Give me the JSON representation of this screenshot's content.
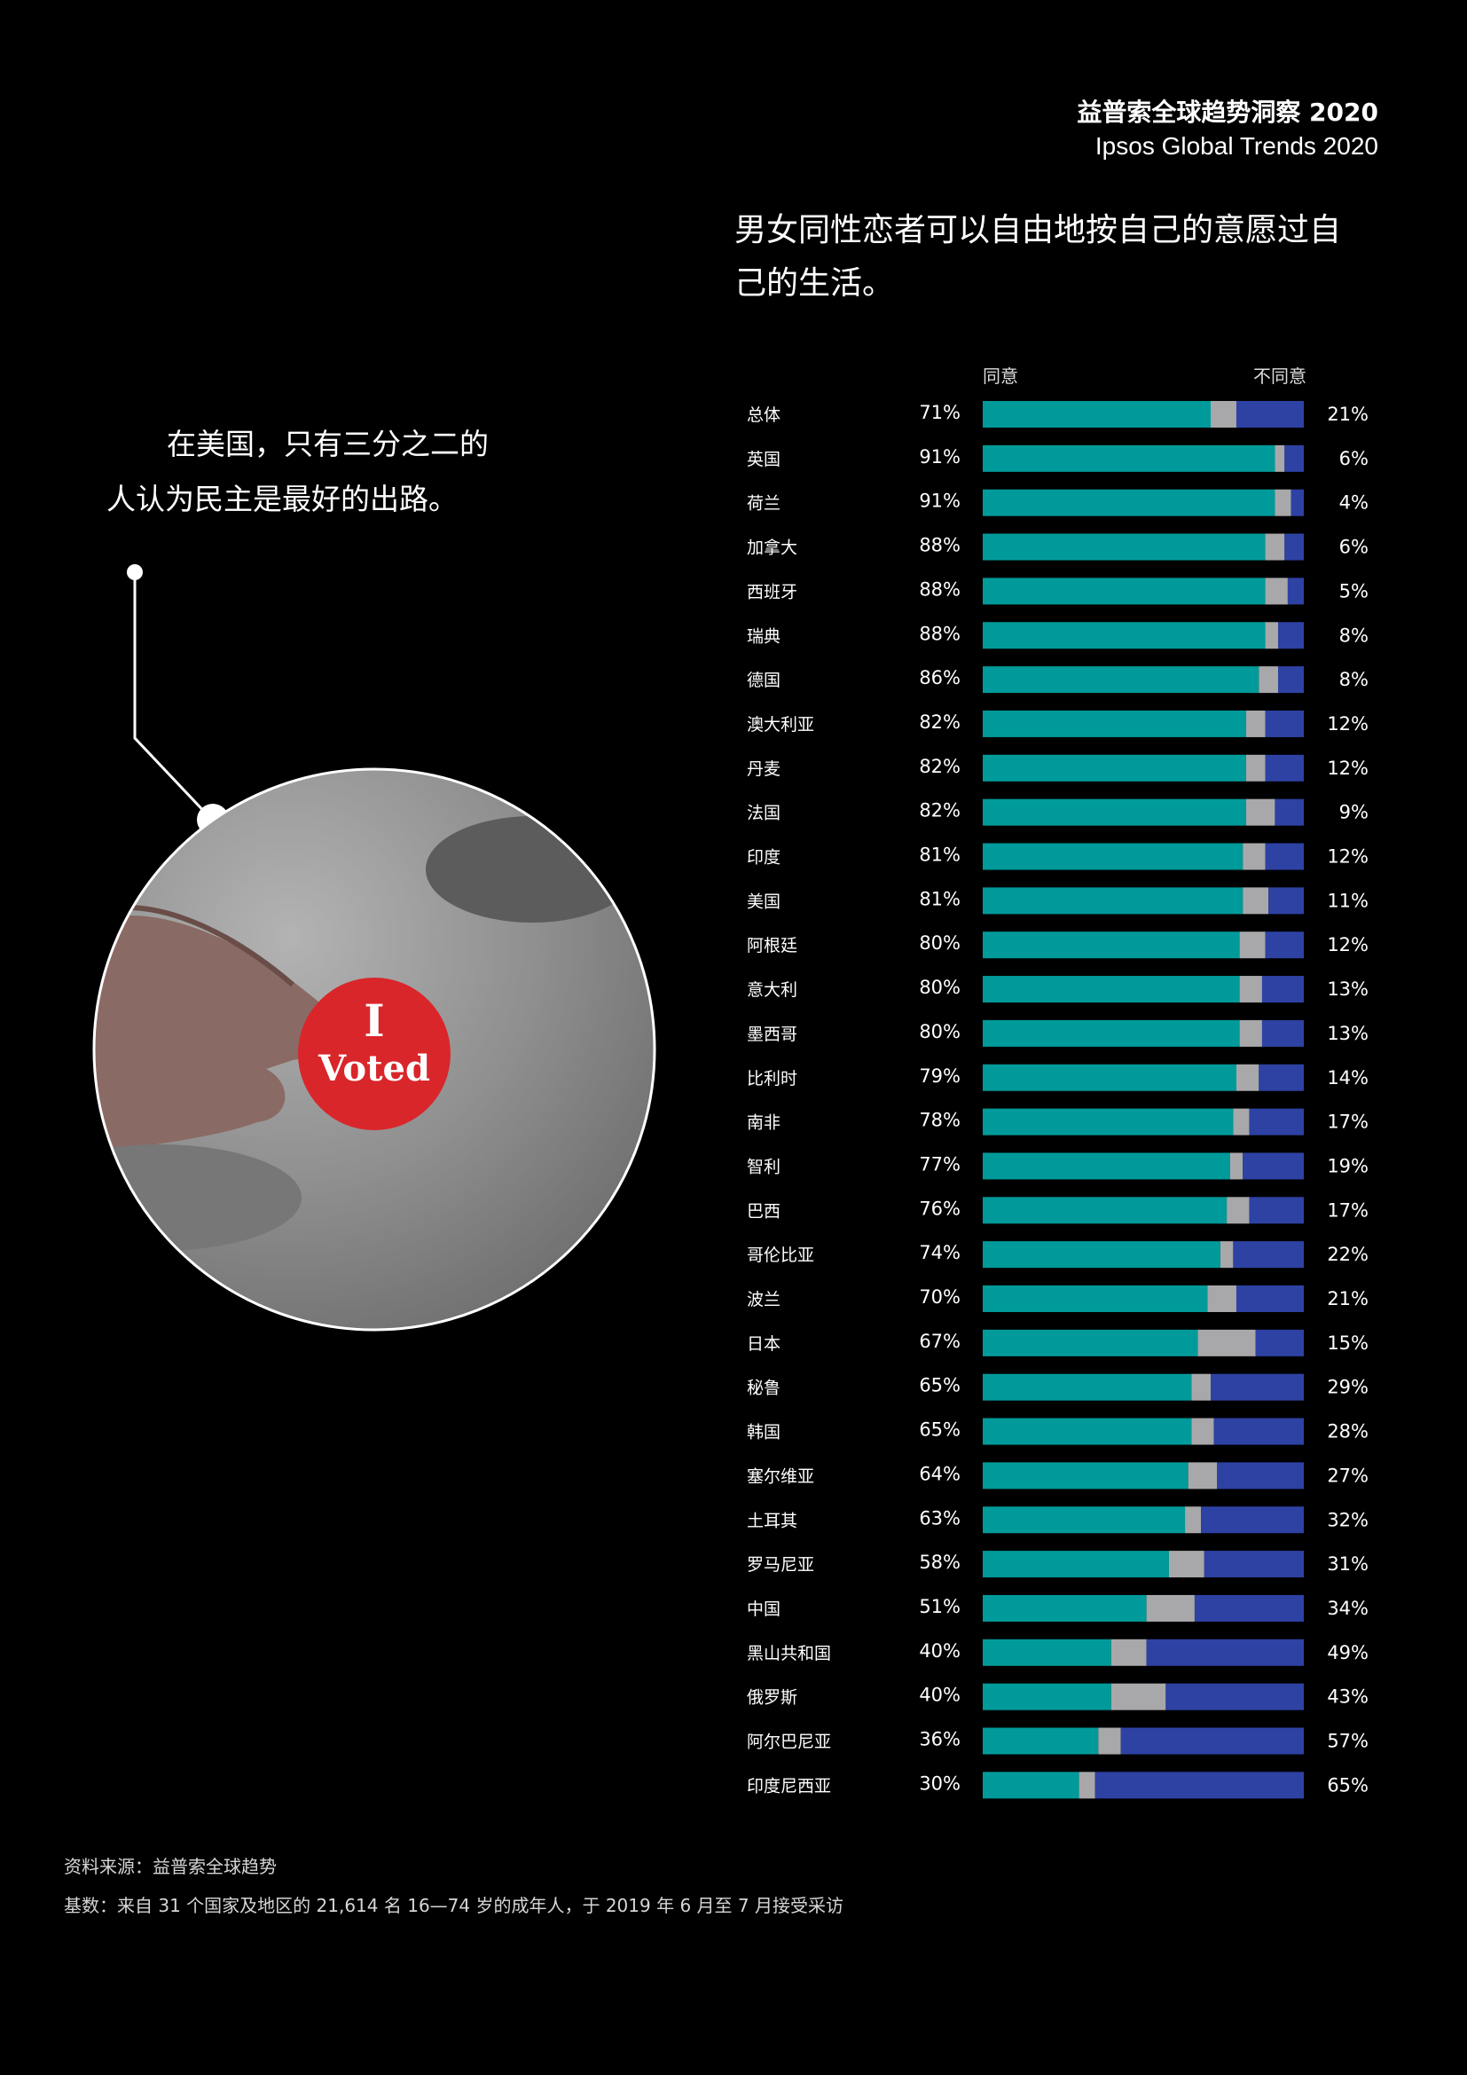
{
  "header": {
    "line1": "益普索全球趋势洞察 2020",
    "line2": "Ipsos Global Trends 2020"
  },
  "callout_text": "在美国，只有三分之二的人认为民主是最好的出路。",
  "sticker": {
    "line1": "I",
    "line2": "Voted"
  },
  "source": {
    "line1": "资料来源：益普索全球趋势",
    "line2": "基数：来自 31 个国家及地区的 21,614 名 16—74 岁的成年人，于 2019 年 6 月至 7 月接受采访"
  },
  "colors": {
    "agree": "#009a9a",
    "neutral": "#a8a8aa",
    "disagree": "#2e42a4",
    "background": "#000000"
  },
  "chart_data": {
    "type": "bar",
    "orientation": "horizontal-stacked",
    "title": "男女同性恋者可以自由地按自己的意愿过自己的生活。",
    "legend": [
      "同意",
      "不同意"
    ],
    "categories": [
      "总体",
      "英国",
      "荷兰",
      "加拿大",
      "西班牙",
      "瑞典",
      "德国",
      "澳大利亚",
      "丹麦",
      "法国",
      "印度",
      "美国",
      "阿根廷",
      "意大利",
      "墨西哥",
      "比利时",
      "南非",
      "智利",
      "巴西",
      "哥伦比亚",
      "波兰",
      "日本",
      "秘鲁",
      "韩国",
      "塞尔维亚",
      "土耳其",
      "罗马尼亚",
      "中国",
      "黑山共和国",
      "俄罗斯",
      "阿尔巴尼亚",
      "印度尼西亚"
    ],
    "series": [
      {
        "name": "同意",
        "values": [
          71,
          91,
          91,
          88,
          88,
          88,
          86,
          82,
          82,
          82,
          81,
          81,
          80,
          80,
          80,
          79,
          78,
          77,
          76,
          74,
          70,
          67,
          65,
          65,
          64,
          63,
          58,
          51,
          40,
          40,
          36,
          30
        ]
      },
      {
        "values": [
          8,
          3,
          5,
          6,
          7,
          4,
          6,
          6,
          6,
          9,
          7,
          8,
          8,
          7,
          7,
          7,
          5,
          4,
          7,
          4,
          9,
          18,
          6,
          7,
          9,
          5,
          11,
          15,
          11,
          17,
          7,
          5
        ]
      },
      {
        "name": "不同意",
        "values": [
          21,
          6,
          4,
          6,
          5,
          8,
          8,
          12,
          12,
          9,
          12,
          11,
          12,
          13,
          13,
          14,
          17,
          19,
          17,
          22,
          21,
          15,
          29,
          28,
          27,
          32,
          31,
          34,
          49,
          43,
          57,
          65
        ]
      }
    ],
    "value_labels_agree": [
      "71%",
      "91%",
      "91%",
      "88%",
      "88%",
      "88%",
      "86%",
      "82%",
      "82%",
      "82%",
      "81%",
      "81%",
      "80%",
      "80%",
      "80%",
      "79%",
      "78%",
      "77%",
      "76%",
      "74%",
      "70%",
      "67%",
      "65%",
      "65%",
      "64%",
      "63%",
      "58%",
      "51%",
      "40%",
      "40%",
      "36%",
      "30%"
    ],
    "value_labels_disagree": [
      "21%",
      "6%",
      "4%",
      "6%",
      "5%",
      "8%",
      "8%",
      "12%",
      "12%",
      "9%",
      "12%",
      "11%",
      "12%",
      "13%",
      "13%",
      "14%",
      "17%",
      "19%",
      "17%",
      "22%",
      "21%",
      "15%",
      "29%",
      "28%",
      "27%",
      "32%",
      "31%",
      "34%",
      "49%",
      "43%",
      "57%",
      "65%"
    ],
    "xlim": [
      0,
      100
    ]
  }
}
